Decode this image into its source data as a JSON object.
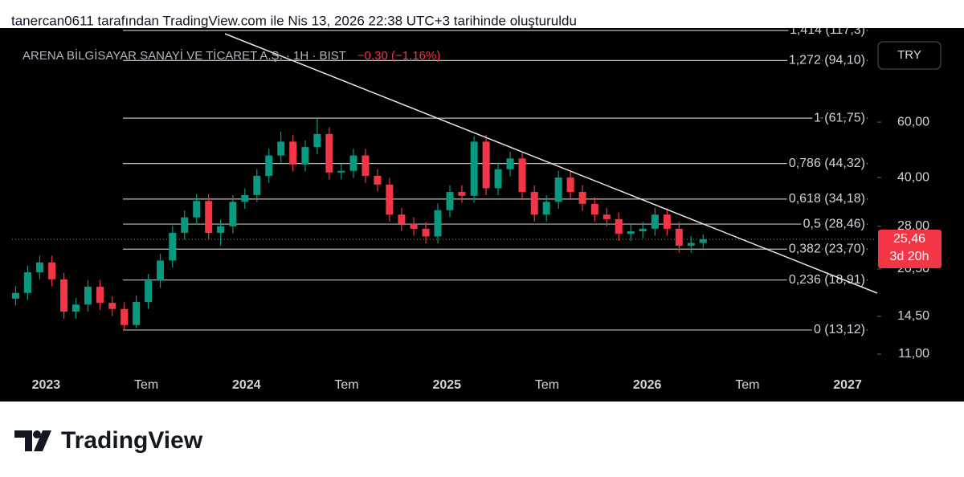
{
  "header": "tanercan0611 tarafından TradingView.com ile Nis 13, 2026 22:38 UTC+3 tarihinde oluşturuldu",
  "brand": "TradingView",
  "chart_data": {
    "type": "candlestick",
    "title": "ARENA BİLGİSAYAR SANAYİ VE TİCARET A.Ş. · 1H · BIST",
    "change": "−0,30 (−1,16%)",
    "currency": "TRY",
    "log_scale": true,
    "up_color": "#089981",
    "down_color": "#f23645",
    "x": [
      2022.848,
      2022.908,
      2022.968,
      2023.029,
      2023.089,
      2023.149,
      2023.209,
      2023.269,
      2023.33,
      2023.39,
      2023.45,
      2023.51,
      2023.57,
      2023.631,
      2023.691,
      2023.751,
      2023.811,
      2023.871,
      2023.932,
      2023.992,
      2024.052,
      2024.112,
      2024.172,
      2024.232,
      2024.293,
      2024.353,
      2024.413,
      2024.473,
      2024.534,
      2024.594,
      2024.654,
      2024.714,
      2024.774,
      2024.835,
      2024.895,
      2024.955,
      2025.015,
      2025.075,
      2025.136,
      2025.196,
      2025.256,
      2025.316,
      2025.376,
      2025.437,
      2025.497,
      2025.557,
      2025.617,
      2025.677,
      2025.738,
      2025.798,
      2025.858,
      2025.918,
      2025.978,
      2026.039,
      2026.099,
      2026.159,
      2026.219,
      2026.279
    ],
    "open": [
      16.5,
      17.2,
      20.0,
      21.5,
      19.0,
      15.0,
      15.8,
      18.0,
      16.0,
      15.3,
      13.6,
      16.1,
      18.8,
      21.8,
      26.7,
      29.9,
      33.7,
      26.7,
      28.0,
      33.5,
      35.2,
      40.5,
      47.0,
      52.0,
      44.0,
      50.0,
      55.0,
      41.5,
      42.0,
      47.0,
      40.5,
      38.0,
      30.5,
      28.5,
      27.5,
      26.0,
      31.5,
      36.0,
      35.0,
      52.0,
      37.0,
      42.5,
      46.0,
      36.0,
      30.5,
      33.5,
      40.0,
      36.0,
      33.0,
      30.5,
      29.5,
      26.5,
      27.0,
      27.5,
      30.5,
      27.5,
      24.3,
      24.8
    ],
    "high": [
      18.06,
      21.0,
      22.58,
      22.58,
      19.95,
      16.59,
      18.9,
      18.9,
      16.8,
      16.07,
      16.91,
      19.74,
      22.89,
      28.04,
      31.4,
      35.39,
      35.39,
      29.4,
      35.18,
      36.96,
      42.53,
      49.35,
      56.0,
      54.6,
      52.5,
      61.75,
      57.75,
      44.1,
      49.35,
      49.35,
      42.53,
      39.9,
      32.03,
      29.93,
      28.88,
      33.08,
      37.8,
      37.8,
      54.0,
      54.6,
      44.63,
      48.3,
      48.3,
      37.8,
      35.18,
      42.0,
      42.0,
      37.8,
      34.65,
      32.03,
      30.98,
      28.35,
      28.88,
      32.03,
      32.03,
      28.88,
      26.04,
      26.4
    ],
    "low": [
      15.68,
      16.34,
      19.0,
      18.05,
      14.25,
      14.25,
      15.01,
      15.2,
      14.54,
      13.12,
      13.3,
      15.3,
      17.86,
      20.71,
      25.37,
      28.41,
      25.37,
      24.3,
      26.6,
      31.83,
      33.44,
      38.48,
      44.65,
      41.8,
      41.8,
      47.5,
      39.43,
      39.43,
      39.9,
      38.48,
      36.1,
      28.98,
      27.08,
      26.13,
      24.7,
      24.7,
      29.93,
      33.25,
      33.25,
      35.15,
      35.15,
      40.38,
      34.2,
      28.98,
      28.98,
      31.83,
      34.2,
      31.35,
      28.98,
      28.03,
      25.18,
      25.18,
      25.65,
      26.13,
      26.13,
      23.09,
      23.09,
      23.9
    ],
    "close": [
      17.2,
      20.0,
      21.5,
      19.0,
      15.0,
      15.8,
      18.0,
      16.0,
      15.3,
      13.6,
      16.1,
      18.8,
      21.8,
      26.7,
      29.9,
      33.7,
      26.7,
      28.0,
      33.5,
      35.2,
      40.5,
      47.0,
      52.0,
      44.0,
      50.0,
      55.0,
      41.5,
      42.0,
      47.0,
      40.5,
      38.0,
      30.5,
      28.5,
      27.5,
      26.0,
      31.5,
      36.0,
      35.0,
      52.0,
      37.0,
      42.5,
      46.0,
      36.0,
      30.5,
      33.5,
      40.0,
      36.0,
      33.0,
      30.5,
      29.5,
      26.5,
      27.0,
      27.5,
      30.5,
      27.5,
      24.3,
      24.8,
      25.46
    ],
    "xlim": [
      2022.83,
      2027.14
    ],
    "xticks": [
      2023,
      {
        "value": 2023.5,
        "label": "Tem"
      },
      2024,
      {
        "value": 2024.5,
        "label": "Tem"
      },
      2025,
      {
        "value": 2025.5,
        "label": "Tem"
      },
      2026,
      {
        "value": 2026.5,
        "label": "Tem"
      },
      2027
    ],
    "ylim": [
      9.55,
      119.3
    ],
    "yticks": [
      {
        "value": 11,
        "label": "11,00"
      },
      {
        "value": 14.5,
        "label": "14,50"
      },
      {
        "value": 20.5,
        "label": "20,50"
      },
      {
        "value": 28,
        "label": "28,00"
      },
      {
        "value": 40,
        "label": "40,00"
      },
      {
        "value": 60,
        "label": "60,00"
      }
    ],
    "fib_levels": [
      {
        "value": 117.3,
        "label": "1,414 (117,3)"
      },
      {
        "value": 94.1,
        "label": "1,272 (94,10)"
      },
      {
        "value": 61.75,
        "label": "1 (61,75)"
      },
      {
        "value": 44.32,
        "label": "0,786 (44,32)"
      },
      {
        "value": 34.18,
        "label": "0,618 (34,18)"
      },
      {
        "value": 28.46,
        "label": "0,5 (28,46)"
      },
      {
        "value": 23.7,
        "label": "0,382 (23,70)"
      },
      {
        "value": 18.91,
        "label": "0,236 (18,91)"
      },
      {
        "value": 13.12,
        "label": "0 (13,12)"
      }
    ],
    "last_price": {
      "value": 25.46,
      "label": "25,46"
    },
    "countdown": "3d 20h"
  }
}
